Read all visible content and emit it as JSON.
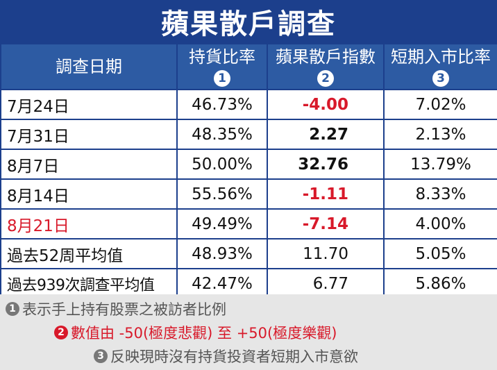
{
  "title": "蘋果散戶調查",
  "headers": [
    {
      "label": "調查日期",
      "num": ""
    },
    {
      "label": "持貨比率",
      "num": "1"
    },
    {
      "label": "蘋果散戶指數",
      "num": "2"
    },
    {
      "label": "短期入市比率",
      "num": "3"
    }
  ],
  "rows": [
    {
      "date": "7月24日",
      "hold": "46.73%",
      "index": "-4.00",
      "short": "7.02%"
    },
    {
      "date": "7月31日",
      "hold": "48.35%",
      "index": "2.27",
      "short": "2.13%"
    },
    {
      "date": "8月7日",
      "hold": "50.00%",
      "index": "32.76",
      "short": "13.79%"
    },
    {
      "date": "8月14日",
      "hold": "55.56%",
      "index": "-1.11",
      "short": "8.33%"
    },
    {
      "date": "8月21日",
      "hold": "49.49%",
      "index": "-7.14",
      "short": "4.00%"
    },
    {
      "date": "過去52周平均值",
      "hold": "48.93%",
      "index": "11.70",
      "short": "5.05%"
    },
    {
      "date": "過去939次調查平均值",
      "hold": "42.47%",
      "index": "6.77",
      "short": "5.86%"
    }
  ],
  "notes": [
    {
      "num": "1",
      "text": "表示手上持有股票之被訪者比例"
    },
    {
      "num": "2",
      "text": "數值由 -50(極度悲觀) 至 +50(極度樂觀)"
    },
    {
      "num": "3",
      "text": "反映現時沒有持貨投資者短期入市意欲"
    }
  ],
  "colors": {
    "header_dark": "#1c3f8c",
    "header": "#2d5ba3",
    "negative": "#d8192a",
    "notes_bg": "#e6e6e6"
  },
  "chart_data": {
    "type": "table",
    "title": "蘋果散戶調查",
    "columns": [
      "調查日期",
      "持貨比率",
      "蘋果散戶指數",
      "短期入市比率"
    ],
    "rows": [
      [
        "7月24日",
        "46.73%",
        "-4.00",
        "7.02%"
      ],
      [
        "7月31日",
        "48.35%",
        "2.27",
        "2.13%"
      ],
      [
        "8月7日",
        "50.00%",
        "32.76",
        "13.79%"
      ],
      [
        "8月14日",
        "55.56%",
        "-1.11",
        "8.33%"
      ],
      [
        "8月21日",
        "49.49%",
        "-7.14",
        "4.00%"
      ],
      [
        "過去52周平均值",
        "48.93%",
        "11.70",
        "5.05%"
      ],
      [
        "過去939次調查平均值",
        "42.47%",
        "6.77",
        "5.86%"
      ]
    ]
  }
}
